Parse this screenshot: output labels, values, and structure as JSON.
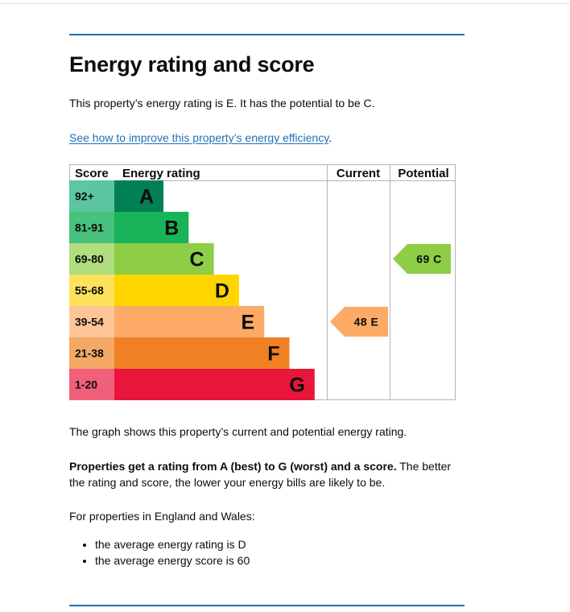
{
  "heading": "Energy rating and score",
  "intro": "This property’s energy rating is E. It has the potential to be C.",
  "link_text": "See how to improve this property’s energy efficiency",
  "link_suffix": ".",
  "chart_data": {
    "type": "table",
    "headers": {
      "score": "Score",
      "rating": "Energy rating",
      "current": "Current",
      "potential": "Potential"
    },
    "bands": [
      {
        "score_range": "92+",
        "letter": "A",
        "color": "#008054",
        "score_bg": "#5cc6a0"
      },
      {
        "score_range": "81-91",
        "letter": "B",
        "color": "#19b459",
        "score_bg": "#47c17b"
      },
      {
        "score_range": "69-80",
        "letter": "C",
        "color": "#8dce46",
        "score_bg": "#b0dd7e"
      },
      {
        "score_range": "55-68",
        "letter": "D",
        "color": "#ffd500",
        "score_bg": "#ffe25c"
      },
      {
        "score_range": "39-54",
        "letter": "E",
        "color": "#fcaa65",
        "score_bg": "#fdc598"
      },
      {
        "score_range": "21-38",
        "letter": "F",
        "color": "#ef8023",
        "score_bg": "#f4a865"
      },
      {
        "score_range": "1-20",
        "letter": "G",
        "color": "#e9153b",
        "score_bg": "#f0607b"
      }
    ],
    "current": {
      "score": 48,
      "letter": "E",
      "label": "48 E"
    },
    "potential": {
      "score": 69,
      "letter": "C",
      "label": "69 C"
    }
  },
  "graph_note": "The graph shows this property’s current and potential energy rating.",
  "explain_bold": "Properties get a rating from A (best) to G (worst) and a score.",
  "explain_rest": " The better the rating and score, the lower your energy bills are likely to be.",
  "eng_wales": "For properties in England and Wales:",
  "bullets": [
    "the average energy rating is D",
    "the average energy score is 60"
  ]
}
